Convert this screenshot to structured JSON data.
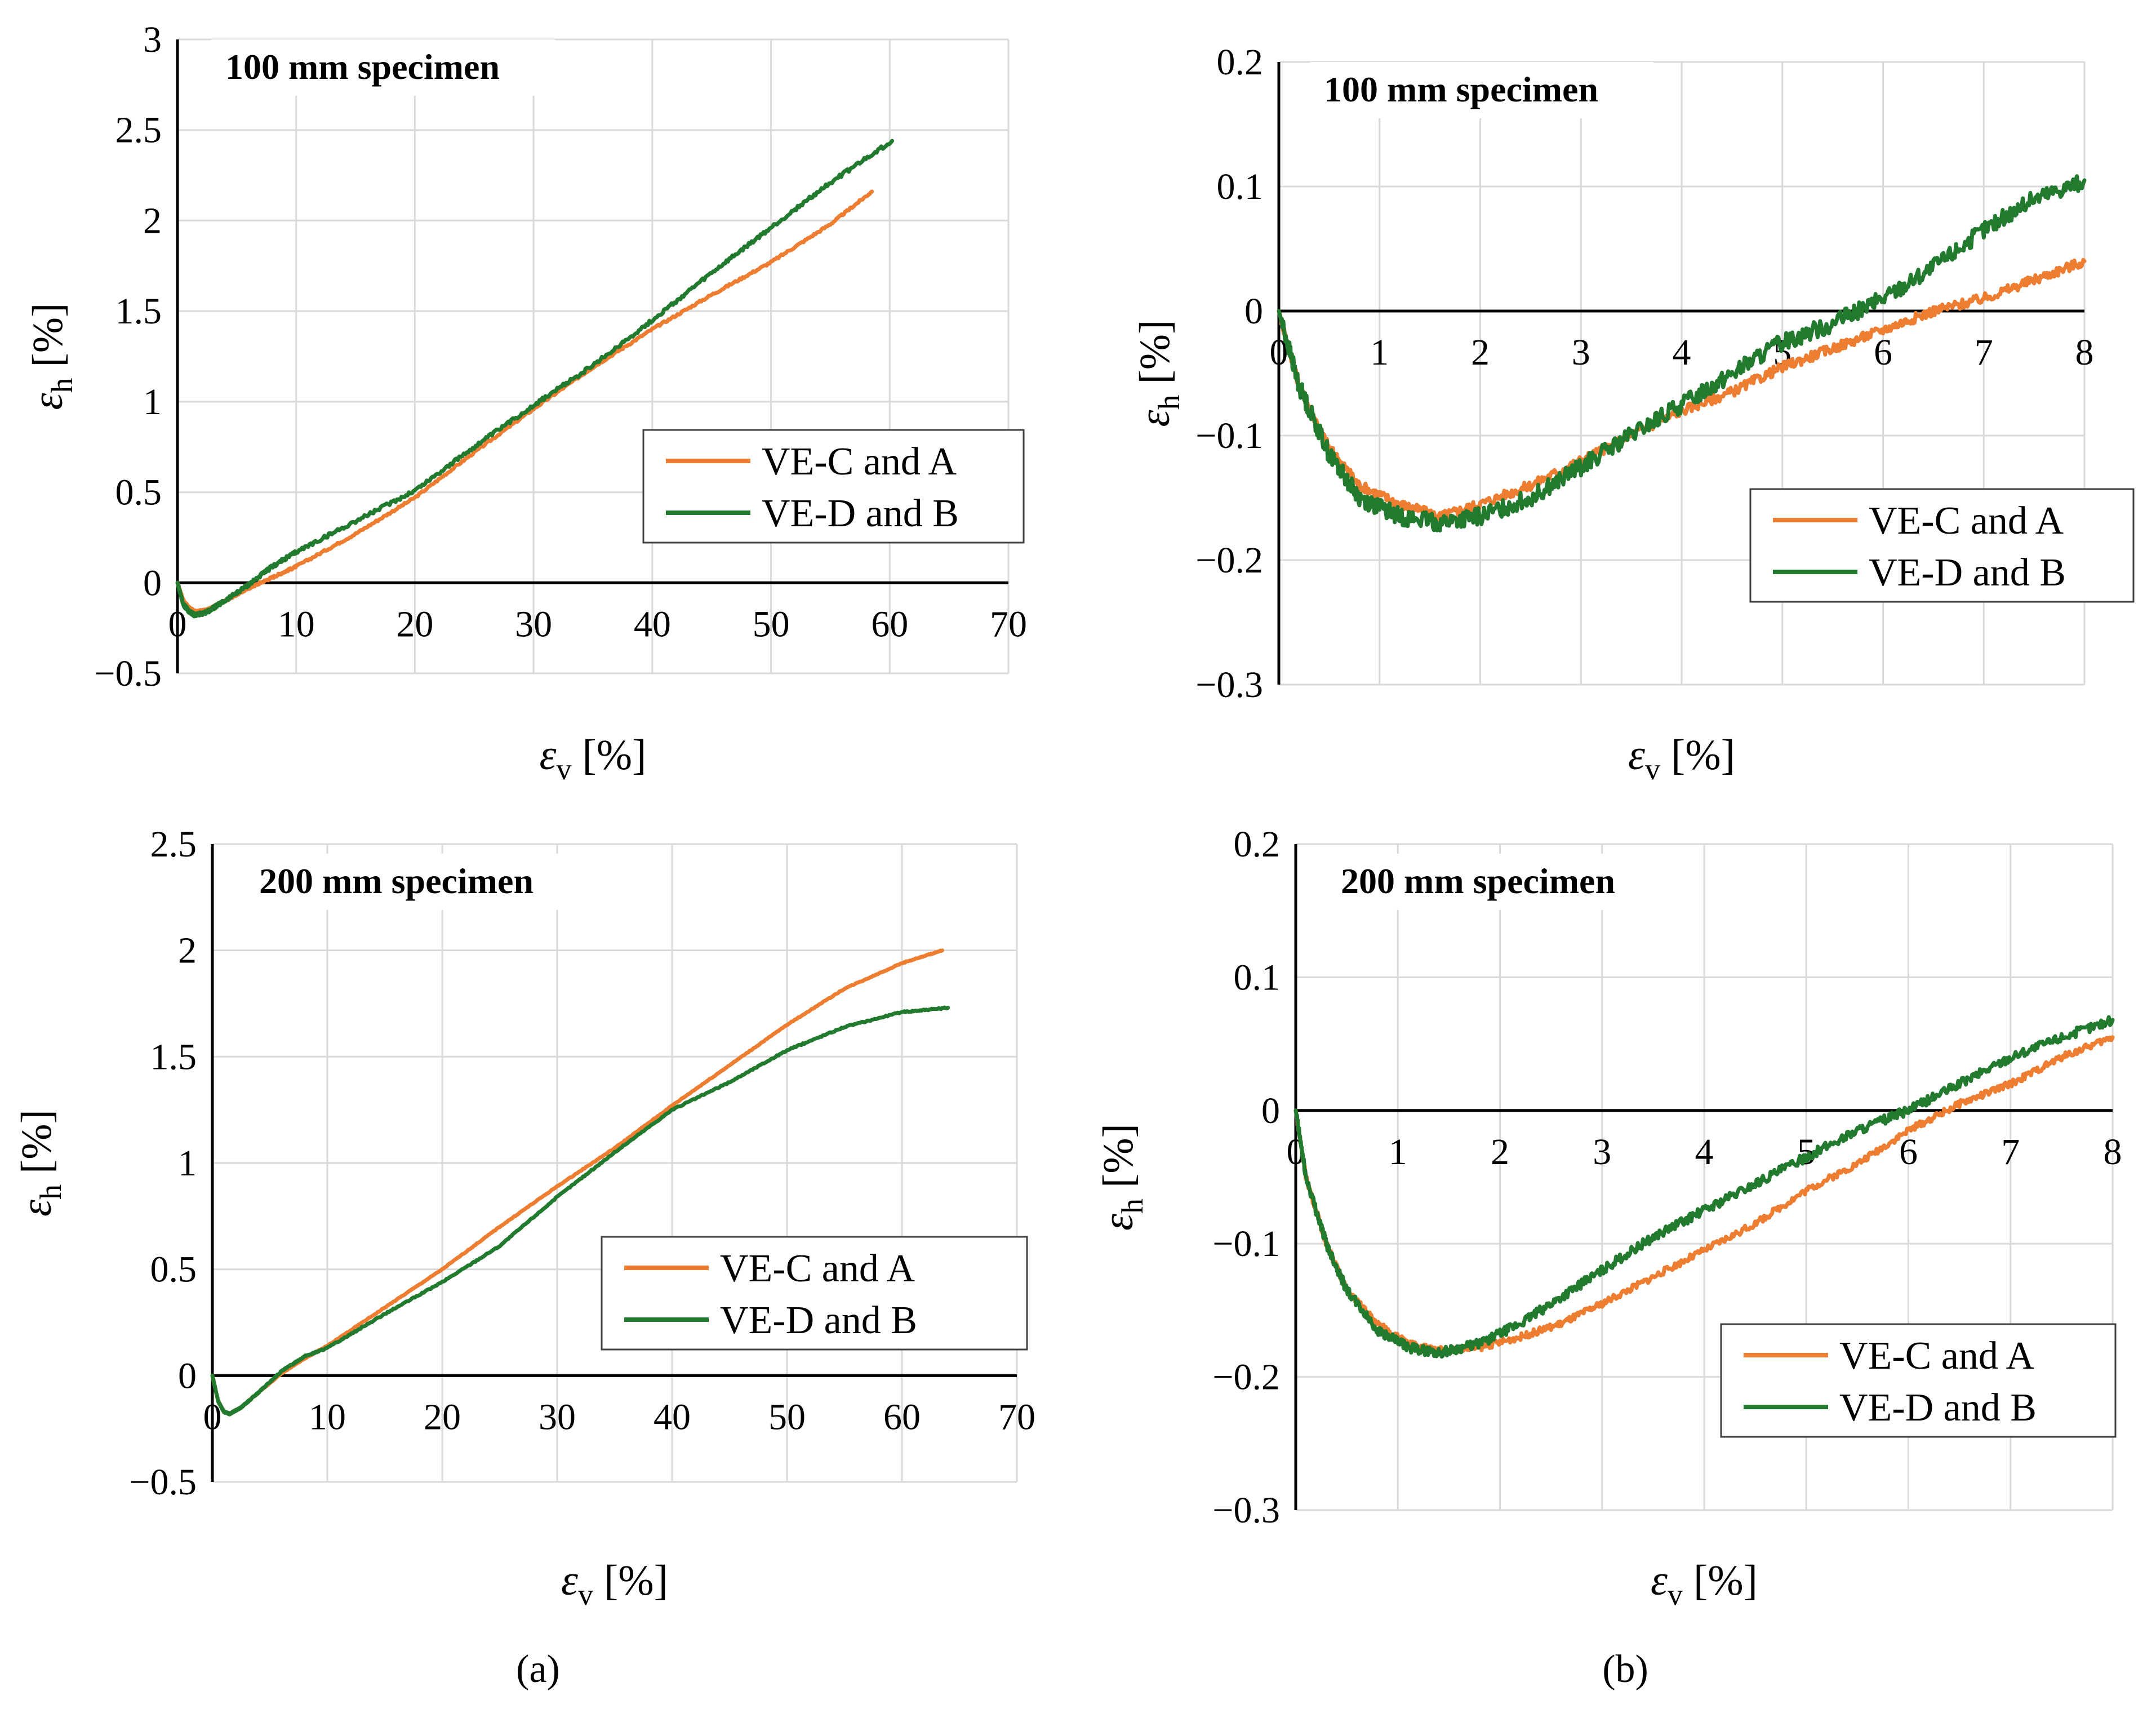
{
  "colors": {
    "orange": "#ED7D31",
    "green": "#217A2E"
  },
  "panel_labels": [
    "(a)",
    "(b)"
  ],
  "chart_data": [
    {
      "type": "line",
      "title": "100 mm specimen",
      "xlabel": {
        "symbol": "ε",
        "sub": "v",
        "unit": " [%]"
      },
      "ylabel": {
        "symbol": "ε",
        "sub": "h",
        "unit": " [%]"
      },
      "xlim": [
        0,
        70
      ],
      "ylim": [
        -0.5,
        3
      ],
      "xticks": [
        "0",
        "10",
        "20",
        "30",
        "40",
        "50",
        "60",
        "70"
      ],
      "yticks": [
        "−0.5",
        "0",
        "0.5",
        "1",
        "1.5",
        "2",
        "2.5",
        "3"
      ],
      "grid": true,
      "legend": "right-middle",
      "series": [
        {
          "name": "VE-C and A",
          "color": "#ED7D31",
          "noise": 0.006,
          "x": [
            0,
            0.5,
            1,
            1.5,
            2.5,
            4,
            6,
            8,
            10,
            15,
            20,
            25,
            30,
            35,
            40,
            45,
            50,
            55,
            58.5
          ],
          "y": [
            0,
            -0.1,
            -0.14,
            -0.16,
            -0.15,
            -0.1,
            -0.03,
            0.03,
            0.09,
            0.27,
            0.47,
            0.72,
            0.96,
            1.19,
            1.4,
            1.59,
            1.77,
            1.98,
            2.16
          ]
        },
        {
          "name": "VE-D and B",
          "color": "#217A2E",
          "noise": 0.01,
          "x": [
            0,
            0.5,
            1,
            1.5,
            2.5,
            4,
            6,
            8,
            10,
            15,
            20,
            25,
            30,
            35,
            40,
            45,
            50,
            55,
            60.2
          ],
          "y": [
            0,
            -0.12,
            -0.16,
            -0.18,
            -0.16,
            -0.1,
            -0.01,
            0.09,
            0.17,
            0.34,
            0.51,
            0.75,
            0.98,
            1.2,
            1.45,
            1.71,
            1.96,
            2.21,
            2.44
          ]
        }
      ]
    },
    {
      "type": "line",
      "title": "100 mm specimen",
      "xlabel": {
        "symbol": "ε",
        "sub": "v",
        "unit": " [%]"
      },
      "ylabel": {
        "symbol": "ε",
        "sub": "h",
        "unit": " [%]"
      },
      "xlim": [
        0,
        8
      ],
      "ylim": [
        -0.3,
        0.2
      ],
      "xticks": [
        "0",
        "1",
        "2",
        "3",
        "4",
        "5",
        "6",
        "7",
        "8"
      ],
      "yticks": [
        "−0.3",
        "−0.2",
        "−0.1",
        "0",
        "0.1",
        "0.2"
      ],
      "grid": true,
      "legend": "bottom-right",
      "series": [
        {
          "name": "VE-C and A",
          "color": "#ED7D31",
          "noise": 0.004,
          "x": [
            0,
            0.2,
            0.5,
            0.8,
            1.2,
            1.6,
            2,
            2.5,
            3,
            3.5,
            4,
            4.5,
            5,
            5.5,
            6,
            6.5,
            7,
            7.5,
            8
          ],
          "y": [
            0,
            -0.06,
            -0.11,
            -0.14,
            -0.155,
            -0.165,
            -0.155,
            -0.14,
            -0.12,
            -0.1,
            -0.08,
            -0.065,
            -0.045,
            -0.03,
            -0.015,
            0,
            0.01,
            0.025,
            0.04
          ]
        },
        {
          "name": "VE-D and B",
          "color": "#217A2E",
          "noise": 0.007,
          "x": [
            0,
            0.2,
            0.5,
            0.8,
            1.2,
            1.6,
            2,
            2.5,
            3,
            3.5,
            4,
            4.5,
            5,
            5.5,
            6,
            6.5,
            7,
            7.5,
            8
          ],
          "y": [
            0,
            -0.06,
            -0.115,
            -0.15,
            -0.165,
            -0.17,
            -0.165,
            -0.15,
            -0.125,
            -0.1,
            -0.075,
            -0.05,
            -0.025,
            -0.01,
            0.01,
            0.035,
            0.065,
            0.09,
            0.105
          ]
        }
      ]
    },
    {
      "type": "line",
      "title": "200 mm specimen",
      "xlabel": {
        "symbol": "ε",
        "sub": "v",
        "unit": " [%]"
      },
      "ylabel": {
        "symbol": "ε",
        "sub": "h",
        "unit": " [%]"
      },
      "xlim": [
        0,
        70
      ],
      "ylim": [
        -0.5,
        2.5
      ],
      "xticks": [
        "0",
        "10",
        "20",
        "30",
        "40",
        "50",
        "60",
        "70"
      ],
      "yticks": [
        "−0.5",
        "0",
        "0.5",
        "1",
        "1.5",
        "2",
        "2.5"
      ],
      "grid": true,
      "legend": "right-middle",
      "series": [
        {
          "name": "VE-C and A",
          "color": "#ED7D31",
          "noise": 0.002,
          "x": [
            0,
            0.5,
            1,
            1.5,
            2.5,
            4,
            6,
            8,
            10,
            15,
            20,
            25,
            30,
            35,
            40,
            45,
            50,
            55,
            60,
            63.5
          ],
          "y": [
            0,
            -0.12,
            -0.17,
            -0.18,
            -0.15,
            -0.08,
            0.01,
            0.08,
            0.14,
            0.32,
            0.5,
            0.7,
            0.89,
            1.07,
            1.27,
            1.46,
            1.65,
            1.82,
            1.94,
            2.0
          ]
        },
        {
          "name": "VE-D and B",
          "color": "#217A2E",
          "noise": 0.003,
          "x": [
            0,
            0.5,
            1,
            1.5,
            2.5,
            4,
            6,
            8,
            10,
            15,
            20,
            25,
            30,
            35,
            40,
            45,
            50,
            55,
            60,
            64
          ],
          "y": [
            0,
            -0.12,
            -0.17,
            -0.18,
            -0.15,
            -0.08,
            0.02,
            0.09,
            0.13,
            0.29,
            0.44,
            0.61,
            0.84,
            1.05,
            1.25,
            1.38,
            1.53,
            1.64,
            1.71,
            1.73
          ]
        }
      ]
    },
    {
      "type": "line",
      "title": "200 mm specimen",
      "xlabel": {
        "symbol": "ε",
        "sub": "v",
        "unit": " [%]"
      },
      "ylabel": {
        "symbol": "ε",
        "sub": "h",
        "unit": " [%]"
      },
      "xlim": [
        0,
        8
      ],
      "ylim": [
        -0.3,
        0.2
      ],
      "xticks": [
        "0",
        "1",
        "2",
        "3",
        "4",
        "5",
        "6",
        "7",
        "8"
      ],
      "yticks": [
        "−0.3",
        "−0.2",
        "−0.1",
        "0",
        "0.1",
        "0.2"
      ],
      "grid": true,
      "legend": "bottom-right",
      "series": [
        {
          "name": "VE-C and A",
          "color": "#ED7D31",
          "noise": 0.0025,
          "x": [
            0,
            0.1,
            0.3,
            0.5,
            0.8,
            1.1,
            1.4,
            1.8,
            2.2,
            2.6,
            3,
            3.5,
            4,
            4.5,
            5,
            5.5,
            6,
            6.5,
            7,
            7.5,
            8
          ],
          "y": [
            0,
            -0.05,
            -0.1,
            -0.135,
            -0.16,
            -0.175,
            -0.18,
            -0.178,
            -0.17,
            -0.16,
            -0.145,
            -0.125,
            -0.105,
            -0.085,
            -0.06,
            -0.04,
            -0.015,
            0.005,
            0.02,
            0.04,
            0.055
          ]
        },
        {
          "name": "VE-D and B",
          "color": "#217A2E",
          "noise": 0.0035,
          "x": [
            0,
            0.1,
            0.3,
            0.5,
            0.8,
            1.1,
            1.4,
            1.8,
            2.2,
            2.6,
            3,
            3.5,
            4,
            4.5,
            5,
            5.5,
            6,
            6.5,
            7,
            7.5,
            8
          ],
          "y": [
            0,
            -0.05,
            -0.1,
            -0.135,
            -0.165,
            -0.178,
            -0.182,
            -0.175,
            -0.16,
            -0.14,
            -0.12,
            -0.095,
            -0.075,
            -0.055,
            -0.035,
            -0.015,
            0,
            0.02,
            0.04,
            0.055,
            0.068
          ]
        }
      ]
    }
  ]
}
